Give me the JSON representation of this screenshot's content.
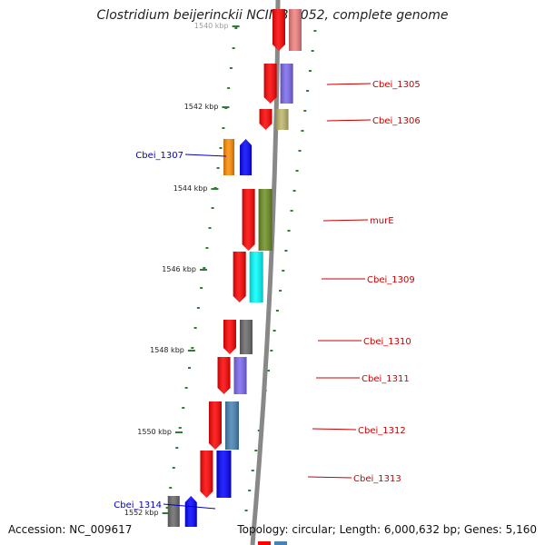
{
  "title": "Clostridium beijerinckii NCIMB 8052, complete genome",
  "footer": {
    "accession": "Accession: NC_009617",
    "summary": "Topology: circular; Length: 6,000,632 bp; Genes: 5,160"
  },
  "axis": {
    "ticks": [
      "1540 kbp",
      "1542 kbp",
      "1544 kbp",
      "1546 kbp",
      "1548 kbp",
      "1550 kbp",
      "1552 kbp"
    ]
  },
  "genes": [
    {
      "name": "",
      "strand": "reverse",
      "color": "#f08080"
    },
    {
      "name": "Cbei_1305",
      "strand": "reverse",
      "color": "#7b68ee"
    },
    {
      "name": "Cbei_1306",
      "strand": "reverse",
      "color": "#bdb76b"
    },
    {
      "name": "Cbei_1307",
      "strand": "forward",
      "color": "#ff8c00"
    },
    {
      "name": "murE",
      "strand": "reverse",
      "color": "#6b8e23"
    },
    {
      "name": "Cbei_1309",
      "strand": "reverse",
      "color": "#00ffff"
    },
    {
      "name": "Cbei_1310",
      "strand": "reverse",
      "color": "#696969"
    },
    {
      "name": "Cbei_1311",
      "strand": "reverse",
      "color": "#7b68ee"
    },
    {
      "name": "Cbei_1312",
      "strand": "reverse",
      "color": "#4682b4"
    },
    {
      "name": "Cbei_1313",
      "strand": "reverse",
      "color": "#0000ff"
    },
    {
      "name": "Cbei_1314",
      "strand": "forward",
      "color": "#696969"
    }
  ],
  "colors": {
    "reverse_strand": "#ff0000",
    "forward_strand": "#0000ff",
    "reverse_label": "#cc0000",
    "forward_label": "#0000cc",
    "backbone": "#888888",
    "tick": "#2e7d32"
  }
}
